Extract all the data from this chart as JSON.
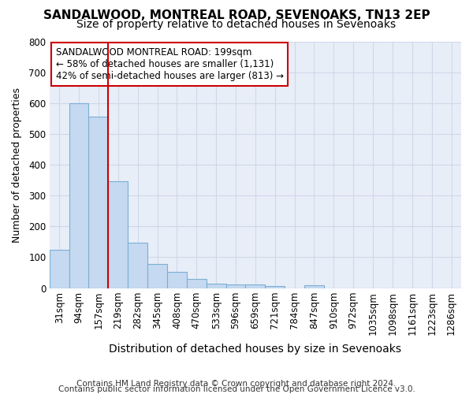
{
  "title1": "SANDALWOOD, MONTREAL ROAD, SEVENOAKS, TN13 2EP",
  "title2": "Size of property relative to detached houses in Sevenoaks",
  "xlabel": "Distribution of detached houses by size in Sevenoaks",
  "ylabel": "Number of detached properties",
  "footnote1": "Contains HM Land Registry data © Crown copyright and database right 2024.",
  "footnote2": "Contains public sector information licensed under the Open Government Licence v3.0.",
  "bar_labels": [
    "31sqm",
    "94sqm",
    "157sqm",
    "219sqm",
    "282sqm",
    "345sqm",
    "408sqm",
    "470sqm",
    "533sqm",
    "596sqm",
    "659sqm",
    "721sqm",
    "784sqm",
    "847sqm",
    "910sqm",
    "972sqm",
    "1035sqm",
    "1098sqm",
    "1161sqm",
    "1223sqm",
    "1286sqm"
  ],
  "bar_values": [
    125,
    600,
    555,
    347,
    148,
    77,
    52,
    30,
    14,
    13,
    13,
    6,
    0,
    8,
    0,
    0,
    0,
    0,
    0,
    0,
    0
  ],
  "bar_color": "#c5d9f0",
  "bar_edge_color": "#7bafd4",
  "vline_x": 2.5,
  "vline_color": "#cc0000",
  "annotation_title": "SANDALWOOD MONTREAL ROAD: 199sqm",
  "annotation_line1": "← 58% of detached houses are smaller (1,131)",
  "annotation_line2": "42% of semi-detached houses are larger (813) →",
  "annotation_box_color": "#ffffff",
  "annotation_box_edge": "#cc0000",
  "ylim": [
    0,
    800
  ],
  "yticks": [
    0,
    100,
    200,
    300,
    400,
    500,
    600,
    700,
    800
  ],
  "bg_color": "#e8eef8",
  "grid_color": "#d0d8e8",
  "title1_fontsize": 11,
  "title2_fontsize": 10,
  "xlabel_fontsize": 10,
  "ylabel_fontsize": 9,
  "tick_fontsize": 8.5,
  "annot_fontsize": 8.5,
  "footnote_fontsize": 7.5
}
